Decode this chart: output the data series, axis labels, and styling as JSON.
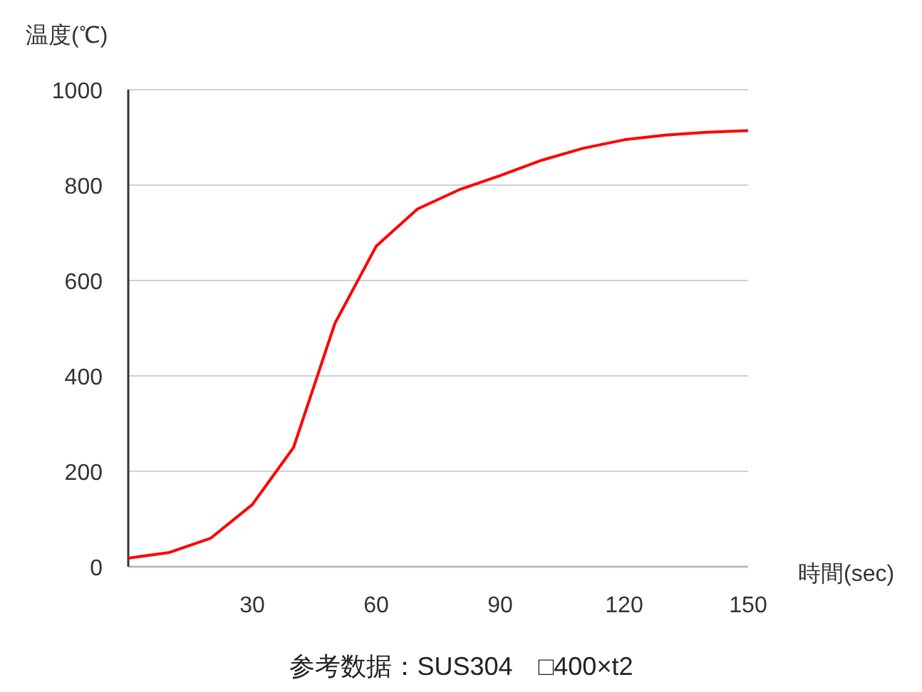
{
  "chart_data": {
    "type": "line",
    "xlabel": "時間(sec)",
    "ylabel": "温度(℃)",
    "annotations": [
      "参考数据：SUS304　□400×t2"
    ],
    "x": [
      0,
      10,
      20,
      30,
      40,
      50,
      60,
      70,
      80,
      90,
      100,
      110,
      120,
      130,
      140,
      150
    ],
    "series": [
      {
        "color": "#ff0000",
        "values": [
          18,
          30,
          60,
          130,
          250,
          510,
          672,
          750,
          790,
          820,
          852,
          877,
          895,
          905,
          911,
          914
        ]
      }
    ],
    "xlim": [
      0,
      150
    ],
    "xticks": [
      30,
      60,
      90,
      120,
      150
    ],
    "ylim": [
      0,
      1000
    ],
    "yticks": [
      0,
      200,
      400,
      600,
      800,
      1000
    ],
    "grid": "y",
    "marker": "none",
    "line_style": "solid"
  }
}
